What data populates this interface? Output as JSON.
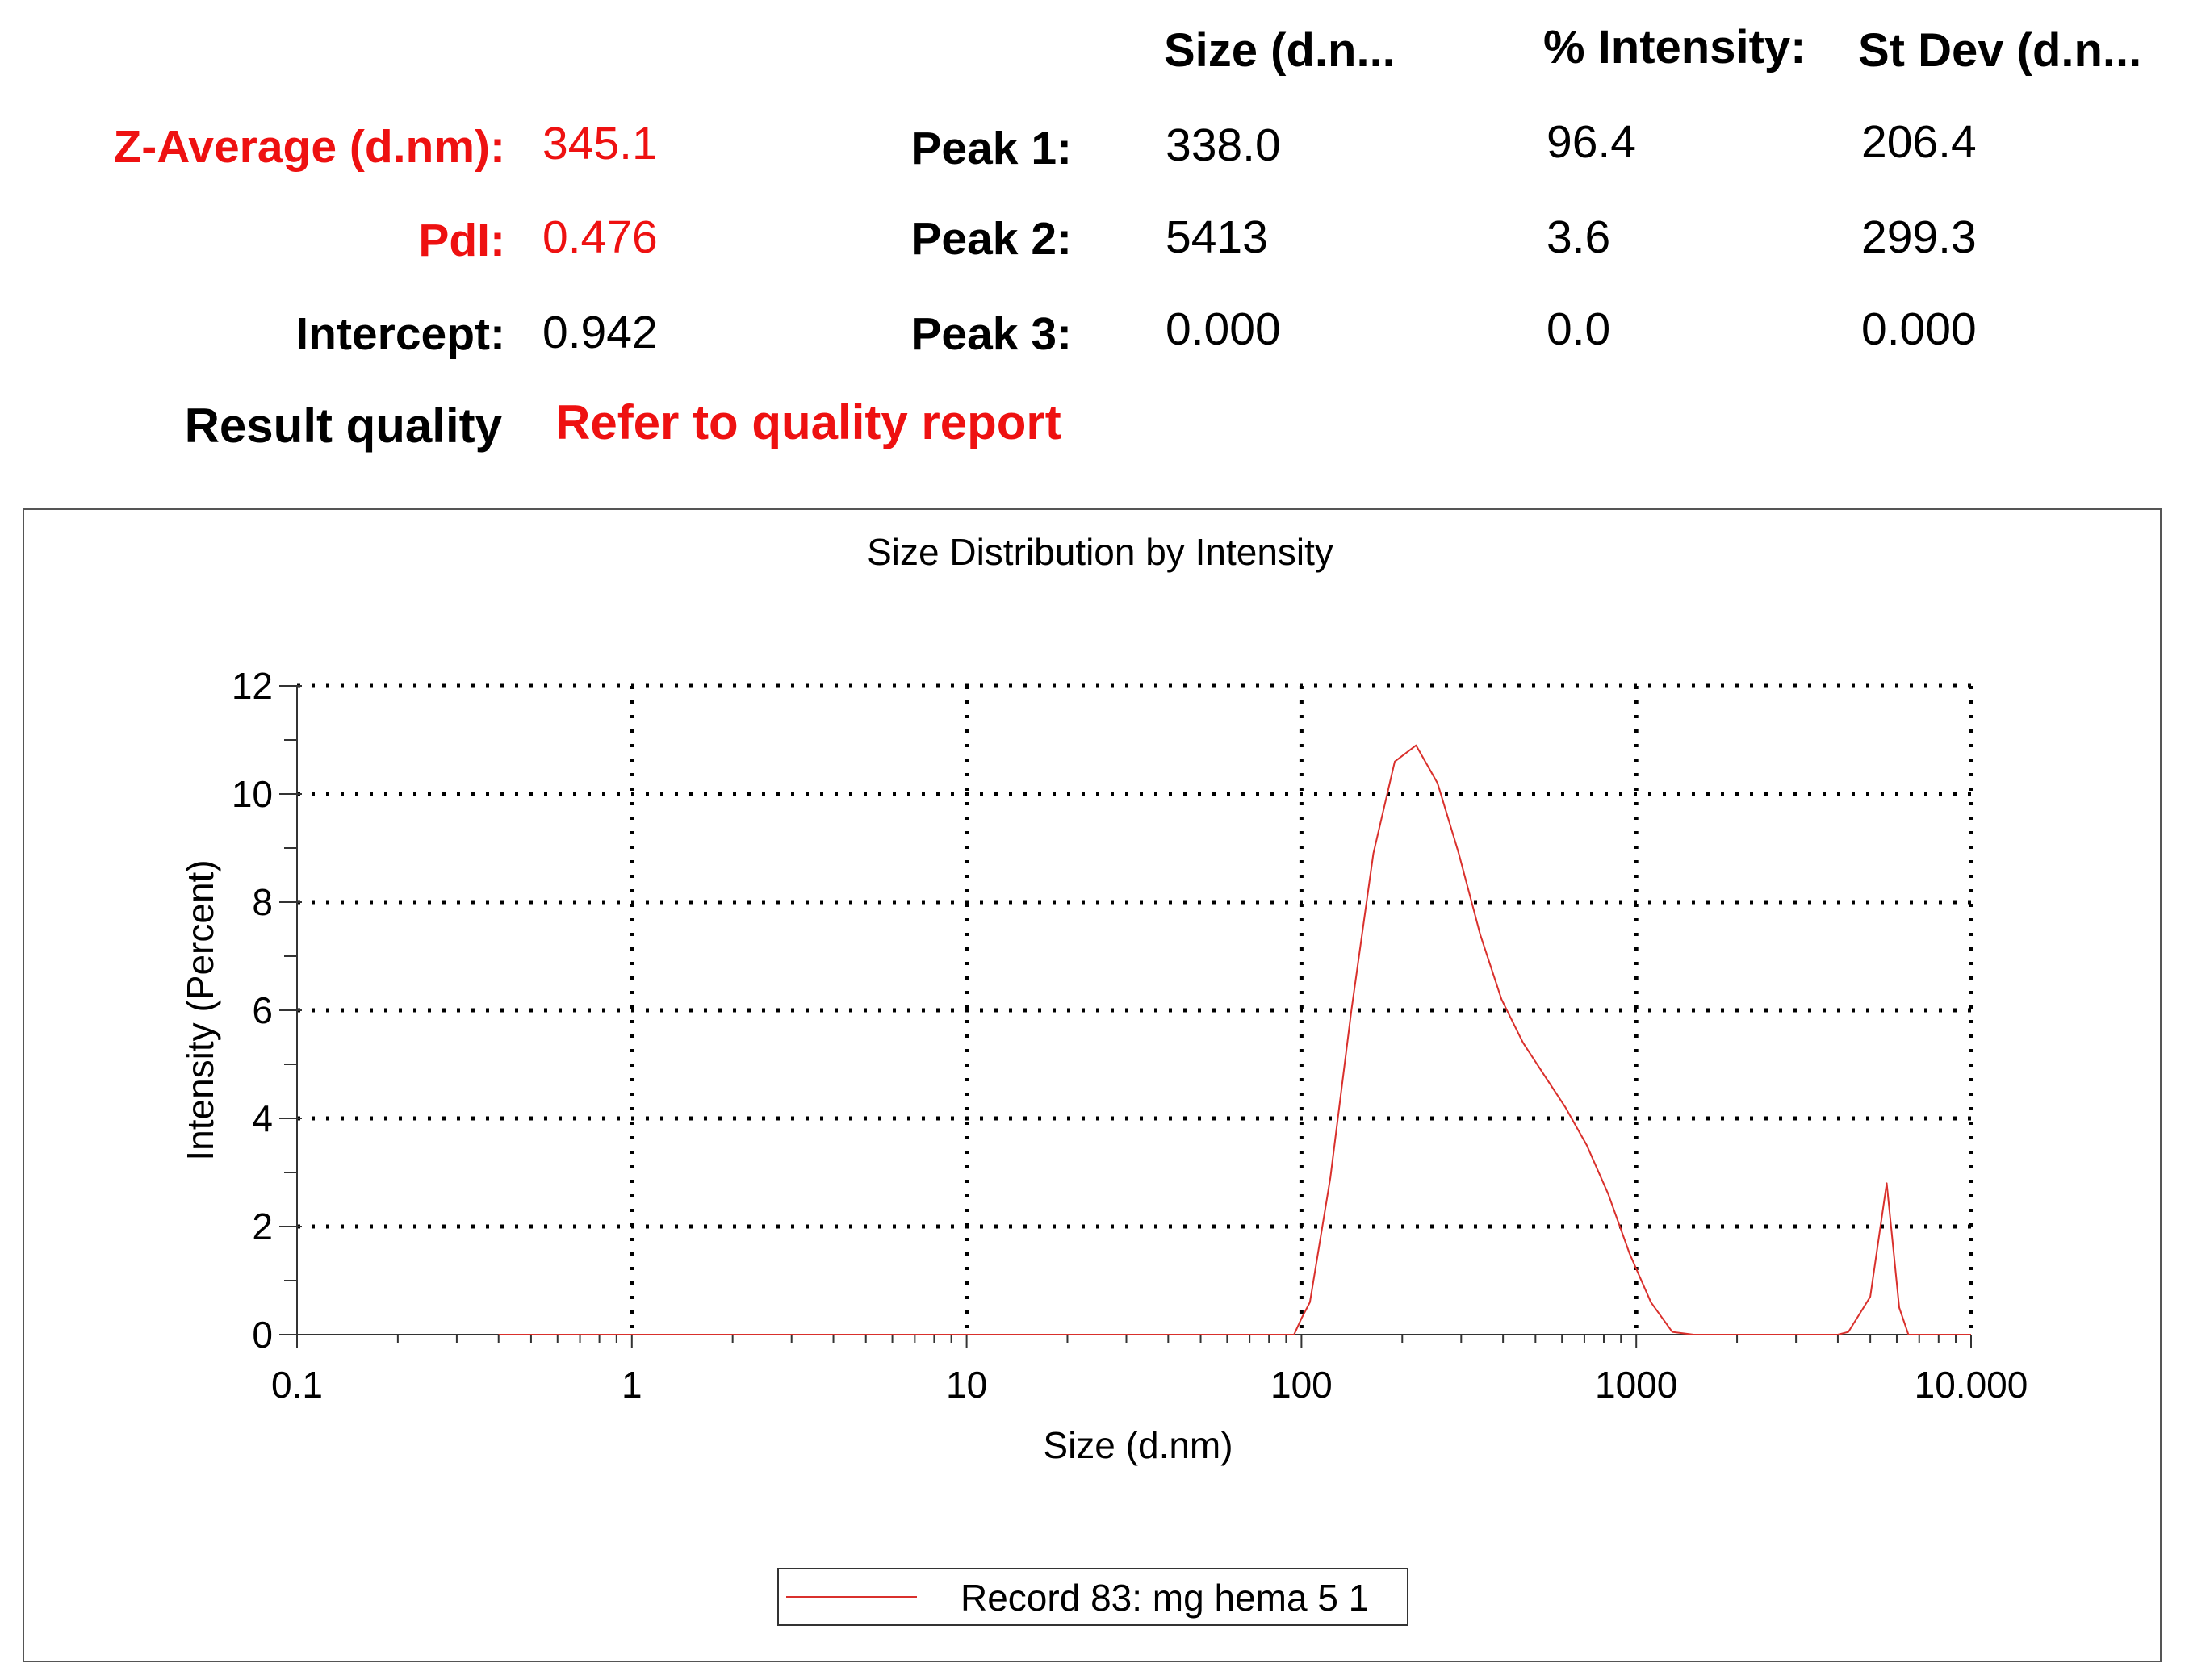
{
  "summary": {
    "headers": {
      "size": "Size (d.n...",
      "intensity": "% Intensity:",
      "stdev": "St Dev (d.n..."
    },
    "z_average": {
      "label": "Z-Average (d.nm):",
      "value": "345.1"
    },
    "pdi": {
      "label": "PdI:",
      "value": "0.476"
    },
    "intercept": {
      "label": "Intercept:",
      "value": "0.942"
    },
    "result_quality": {
      "label": "Result quality",
      "value": "Refer to quality report"
    },
    "peaks": [
      {
        "label": "Peak 1:",
        "size": "338.0",
        "intensity": "96.4",
        "stdev": "206.4"
      },
      {
        "label": "Peak 2:",
        "size": "5413",
        "intensity": "3.6",
        "stdev": "299.3"
      },
      {
        "label": "Peak 3:",
        "size": "0.000",
        "intensity": "0.0",
        "stdev": "0.000"
      }
    ]
  },
  "colors": {
    "highlight": "#ee1111",
    "series": "#d9302c"
  },
  "chart_data": {
    "type": "line",
    "title": "Size Distribution by Intensity",
    "xlabel": "Size (d.nm)",
    "ylabel": "Intensity (Percent)",
    "x_scale": "log",
    "xlim": [
      0.1,
      10000
    ],
    "ylim": [
      0,
      12
    ],
    "x_ticks": [
      0.1,
      1,
      10,
      100,
      1000,
      10000
    ],
    "x_tick_labels": [
      "0.1",
      "1",
      "10",
      "100",
      "1000",
      "10.000"
    ],
    "y_ticks": [
      0,
      2,
      4,
      6,
      8,
      10,
      12
    ],
    "y_tick_labels": [
      "0",
      "2",
      "4",
      "6",
      "8",
      "10",
      "12"
    ],
    "grid": true,
    "legend_position": "bottom-center",
    "series": [
      {
        "name": "Record 83: mg hema 5 1",
        "x": [
          0.4,
          1,
          10,
          95,
          100,
          106,
          122,
          141,
          164,
          190,
          220,
          255,
          295,
          342,
          396,
          459,
          531,
          615,
          712,
          825,
          955,
          1106,
          1281,
          1484,
          1718,
          2000,
          2300,
          3000,
          3500,
          4000,
          4300,
          5000,
          5600,
          6100,
          6500,
          7000,
          10000
        ],
        "y": [
          0,
          0,
          0,
          0,
          0.3,
          0.6,
          2.9,
          6.0,
          8.9,
          10.6,
          10.9,
          10.2,
          8.9,
          7.4,
          6.2,
          5.4,
          4.8,
          4.2,
          3.5,
          2.6,
          1.5,
          0.6,
          0.05,
          0,
          0,
          0,
          0,
          0,
          0,
          0,
          0.05,
          0.7,
          2.8,
          0.5,
          0,
          0,
          0
        ]
      }
    ]
  }
}
